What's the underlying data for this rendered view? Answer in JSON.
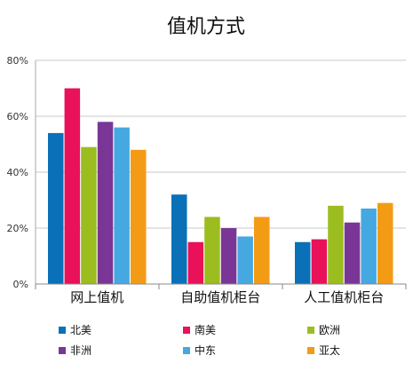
{
  "chart_data": {
    "type": "bar",
    "title": "值机方式",
    "xlabel": "",
    "ylabel": "",
    "categories": [
      "网上值机",
      "自助值机柜台",
      "人工值机柜台"
    ],
    "ylim": [
      0,
      80
    ],
    "yticks": [
      0,
      20,
      40,
      60,
      80
    ],
    "ytick_labels": [
      "0%",
      "20%",
      "40%",
      "60%",
      "80%"
    ],
    "grid": true,
    "legend_position": "bottom",
    "series": [
      {
        "name": "北美",
        "color": "#0a70b8",
        "values": [
          54,
          32,
          15
        ]
      },
      {
        "name": "南美",
        "color": "#e8115a",
        "values": [
          70,
          15,
          16
        ]
      },
      {
        "name": "欧洲",
        "color": "#9bbd1f",
        "values": [
          49,
          24,
          28
        ]
      },
      {
        "name": "非洲",
        "color": "#7a3696",
        "values": [
          58,
          20,
          22
        ]
      },
      {
        "name": "中东",
        "color": "#45a8e0",
        "values": [
          56,
          17,
          27
        ]
      },
      {
        "name": "亚太",
        "color": "#f49b16",
        "values": [
          48,
          24,
          29
        ]
      }
    ]
  }
}
